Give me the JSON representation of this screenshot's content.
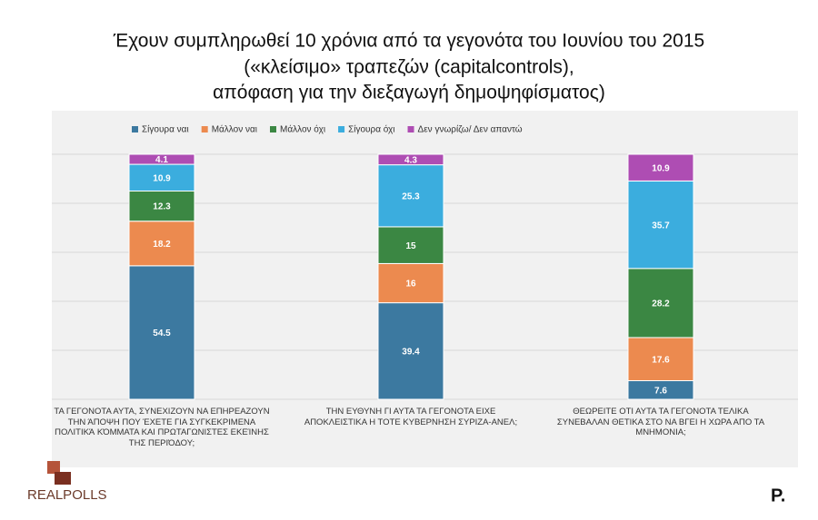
{
  "chart_data": {
    "type": "stacked_bar",
    "title": [
      "Έχουν συμπληρωθεί 10 χρόνια από τα γεγονότα του Ιουνίου του 2015",
      "(«κλείσιμο» τραπεζών (capitalcontrols),",
      "απόφαση για την διεξαγωγή δημοψηφίσματος)"
    ],
    "categories": [
      "ΤΑ ΓΕΓΟΝΟΤΑ ΑΥΤΑ, ΣΥΝΕΧΙΖΟΥΝ ΝΑ ΕΠΗΡΕΑΖΟΥΝ ΤΗΝ ΆΠΟΨΗ ΠΟΥ ΈΧΕΤΕ ΓΙΑ ΣΥΓΚΕΚΡΙΜΕΝΑ ΠΟΛΙΤΙΚΆ ΚΌΜΜΑΤΑ ΚΑΙ ΠΡΩΤΑΓΩΝΙΣΤΕΣ ΕΚΕΊΝΗΣ ΤΗΣ ΠΕΡΙΌΔΟΥ;",
      "ΤΗΝ ΕΥΘΥΝΗ ΓΙ ΑΥΤΑ ΤΑ ΓΕΓΟΝΟΤΑ ΕΙΧΕ ΑΠΟΚΛΕΙΣΤΙΚΑ Η ΤΟΤΕ ΚΥΒΕΡΝΗΣΗ ΣΥΡΙΖΑ-ΑΝΕΛ;",
      "ΘΕΩΡΕΙΤΕ ΟΤΙ ΑΥΤΑ ΤΑ ΓΕΓΟΝΟΤΑ ΤΕΛΙΚΑ ΣΥΝΕΒΑΛΑΝ ΘΕΤΙΚΑ ΣΤΟ ΝΑ ΒΓΕΙ Η ΧΩΡΑ ΑΠΟ ΤΑ ΜΝΗΜΟΝΙΑ;"
    ],
    "series": [
      {
        "name": "Σίγουρα ναι",
        "color": "#3c79a0",
        "values": [
          54.5,
          39.4,
          7.6
        ]
      },
      {
        "name": "Μάλλον ναι",
        "color": "#ec8a4f",
        "values": [
          18.2,
          16,
          17.6
        ]
      },
      {
        "name": "Μάλλον όχι",
        "color": "#3b8743",
        "values": [
          12.3,
          15,
          28.2
        ]
      },
      {
        "name": "Σίγουρα όχι",
        "color": "#3badde",
        "values": [
          10.9,
          25.3,
          35.7
        ]
      },
      {
        "name": "Δεν γνωρίζω/ Δεν απαντώ",
        "color": "#ae4db3",
        "values": [
          4.1,
          4.3,
          10.9
        ]
      }
    ],
    "ylim": [
      0,
      100
    ],
    "yticks": [
      0,
      20,
      40,
      60,
      80,
      100
    ],
    "grid": true,
    "legend": "top",
    "logo": "REALPOLLS",
    "brand": "P."
  }
}
